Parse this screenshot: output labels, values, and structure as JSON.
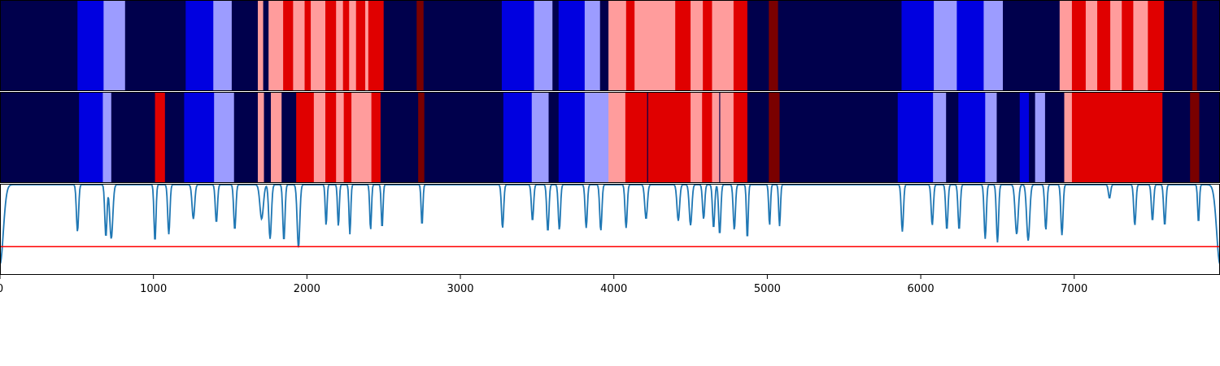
{
  "colors": {
    "c0": "#00004c",
    "c1": "#0000e0",
    "c2": "#9c9cff",
    "c3": "#ff9c9c",
    "c4": "#e00000",
    "c5": "#7a0000",
    "line": "#1f77b4",
    "threshold": "#ff0000"
  },
  "chart_data": {
    "type": "segmentation-strips-with-line",
    "x_range": [
      0,
      7950
    ],
    "x_ticks": [
      0,
      1000,
      2000,
      3000,
      4000,
      5000,
      6000,
      7000
    ],
    "x_tick_labels": [
      "0",
      "1000",
      "2000",
      "3000",
      "4000",
      "5000",
      "6000",
      "7000"
    ],
    "legend": "none",
    "grid": false,
    "strips": [
      {
        "segments": [
          [
            0,
            505,
            "c0"
          ],
          [
            505,
            675,
            "c1"
          ],
          [
            675,
            815,
            "c2"
          ],
          [
            815,
            1210,
            "c0"
          ],
          [
            1210,
            1390,
            "c1"
          ],
          [
            1390,
            1510,
            "c2"
          ],
          [
            1510,
            1680,
            "c0"
          ],
          [
            1680,
            1715,
            "c3"
          ],
          [
            1715,
            1750,
            "c0"
          ],
          [
            1750,
            1845,
            "c3"
          ],
          [
            1845,
            1910,
            "c4"
          ],
          [
            1910,
            1985,
            "c3"
          ],
          [
            1985,
            2025,
            "c4"
          ],
          [
            2025,
            2120,
            "c3"
          ],
          [
            2120,
            2190,
            "c4"
          ],
          [
            2190,
            2235,
            "c3"
          ],
          [
            2235,
            2275,
            "c4"
          ],
          [
            2275,
            2320,
            "c3"
          ],
          [
            2320,
            2380,
            "c4"
          ],
          [
            2380,
            2400,
            "c3"
          ],
          [
            2400,
            2500,
            "c4"
          ],
          [
            2500,
            2715,
            "c0"
          ],
          [
            2715,
            2760,
            "c5"
          ],
          [
            2760,
            3270,
            "c0"
          ],
          [
            3270,
            3480,
            "c1"
          ],
          [
            3480,
            3600,
            "c2"
          ],
          [
            3600,
            3640,
            "c0"
          ],
          [
            3640,
            3810,
            "c1"
          ],
          [
            3810,
            3910,
            "c2"
          ],
          [
            3910,
            3965,
            "c0"
          ],
          [
            3965,
            4080,
            "c3"
          ],
          [
            4080,
            4135,
            "c4"
          ],
          [
            4135,
            4400,
            "c3"
          ],
          [
            4400,
            4500,
            "c4"
          ],
          [
            4500,
            4580,
            "c3"
          ],
          [
            4580,
            4640,
            "c4"
          ],
          [
            4640,
            4780,
            "c3"
          ],
          [
            4780,
            4870,
            "c4"
          ],
          [
            4870,
            5010,
            "c0"
          ],
          [
            5010,
            5070,
            "c5"
          ],
          [
            5070,
            5875,
            "c0"
          ],
          [
            5875,
            6085,
            "c1"
          ],
          [
            6085,
            6235,
            "c2"
          ],
          [
            6235,
            6410,
            "c1"
          ],
          [
            6410,
            6535,
            "c2"
          ],
          [
            6535,
            6905,
            "c0"
          ],
          [
            6905,
            6985,
            "c3"
          ],
          [
            6985,
            7075,
            "c4"
          ],
          [
            7075,
            7150,
            "c3"
          ],
          [
            7150,
            7235,
            "c4"
          ],
          [
            7235,
            7310,
            "c3"
          ],
          [
            7310,
            7385,
            "c4"
          ],
          [
            7385,
            7480,
            "c3"
          ],
          [
            7480,
            7585,
            "c4"
          ],
          [
            7585,
            7770,
            "c0"
          ],
          [
            7770,
            7800,
            "c5"
          ],
          [
            7800,
            7950,
            "c0"
          ]
        ]
      },
      {
        "segments": [
          [
            0,
            515,
            "c0"
          ],
          [
            515,
            670,
            "c1"
          ],
          [
            670,
            725,
            "c2"
          ],
          [
            725,
            1010,
            "c0"
          ],
          [
            1010,
            1075,
            "c4"
          ],
          [
            1075,
            1200,
            "c0"
          ],
          [
            1200,
            1395,
            "c1"
          ],
          [
            1395,
            1525,
            "c2"
          ],
          [
            1525,
            1680,
            "c0"
          ],
          [
            1680,
            1720,
            "c3"
          ],
          [
            1720,
            1765,
            "c0"
          ],
          [
            1765,
            1835,
            "c3"
          ],
          [
            1835,
            1930,
            "c0"
          ],
          [
            1930,
            2045,
            "c4"
          ],
          [
            2045,
            2120,
            "c3"
          ],
          [
            2120,
            2190,
            "c4"
          ],
          [
            2190,
            2240,
            "c3"
          ],
          [
            2240,
            2290,
            "c4"
          ],
          [
            2290,
            2420,
            "c3"
          ],
          [
            2420,
            2480,
            "c4"
          ],
          [
            2480,
            2725,
            "c0"
          ],
          [
            2725,
            2765,
            "c5"
          ],
          [
            2765,
            3280,
            "c0"
          ],
          [
            3280,
            3465,
            "c1"
          ],
          [
            3465,
            3575,
            "c2"
          ],
          [
            3575,
            3640,
            "c0"
          ],
          [
            3640,
            3810,
            "c1"
          ],
          [
            3810,
            3965,
            "c2"
          ],
          [
            3965,
            4075,
            "c3"
          ],
          [
            4075,
            4500,
            "c4"
          ],
          [
            4500,
            4575,
            "c3"
          ],
          [
            4575,
            4640,
            "c4"
          ],
          [
            4640,
            4700,
            "c3"
          ],
          [
            4700,
            4780,
            "c3"
          ],
          [
            4780,
            4870,
            "c4"
          ],
          [
            4870,
            5010,
            "c0"
          ],
          [
            5010,
            5080,
            "c5"
          ],
          [
            5080,
            5850,
            "c0"
          ],
          [
            5850,
            6080,
            "c1"
          ],
          [
            6080,
            6165,
            "c2"
          ],
          [
            6165,
            6245,
            "c0"
          ],
          [
            6245,
            6420,
            "c1"
          ],
          [
            6420,
            6495,
            "c2"
          ],
          [
            6495,
            6645,
            "c0"
          ],
          [
            6645,
            6705,
            "c1"
          ],
          [
            6705,
            6745,
            "c0"
          ],
          [
            6745,
            6810,
            "c2"
          ],
          [
            6810,
            6935,
            "c0"
          ],
          [
            6935,
            6985,
            "c3"
          ],
          [
            6985,
            7575,
            "c4"
          ],
          [
            7575,
            7755,
            "c0"
          ],
          [
            7755,
            7815,
            "c5"
          ],
          [
            7815,
            7950,
            "c0"
          ]
        ],
        "thin_lines": [
          1875,
          4220,
          4690
        ]
      }
    ],
    "line_series": {
      "ylim": [
        0,
        1
      ],
      "baseline": 0.99,
      "threshold": 0.31,
      "dips": [
        [
          0,
          0.12,
          30
        ],
        [
          505,
          0.48,
          10
        ],
        [
          690,
          0.42,
          10
        ],
        [
          725,
          0.4,
          14
        ],
        [
          1010,
          0.37,
          9
        ],
        [
          1100,
          0.45,
          10
        ],
        [
          1260,
          0.62,
          12
        ],
        [
          1410,
          0.58,
          10
        ],
        [
          1530,
          0.5,
          10
        ],
        [
          1705,
          0.62,
          16
        ],
        [
          1760,
          0.4,
          12
        ],
        [
          1850,
          0.38,
          10
        ],
        [
          1945,
          0.3,
          12
        ],
        [
          2125,
          0.55,
          8
        ],
        [
          2205,
          0.54,
          8
        ],
        [
          2280,
          0.45,
          8
        ],
        [
          2415,
          0.5,
          8
        ],
        [
          2490,
          0.52,
          8
        ],
        [
          2750,
          0.55,
          8
        ],
        [
          3275,
          0.52,
          10
        ],
        [
          3470,
          0.6,
          10
        ],
        [
          3570,
          0.48,
          10
        ],
        [
          3645,
          0.5,
          10
        ],
        [
          3820,
          0.52,
          10
        ],
        [
          3915,
          0.49,
          10
        ],
        [
          4080,
          0.52,
          10
        ],
        [
          4210,
          0.62,
          12
        ],
        [
          4420,
          0.6,
          12
        ],
        [
          4500,
          0.55,
          12
        ],
        [
          4585,
          0.62,
          10
        ],
        [
          4650,
          0.52,
          10
        ],
        [
          4690,
          0.45,
          10
        ],
        [
          4785,
          0.5,
          10
        ],
        [
          4870,
          0.4,
          8
        ],
        [
          5015,
          0.55,
          8
        ],
        [
          5080,
          0.54,
          8
        ],
        [
          5880,
          0.48,
          10
        ],
        [
          6075,
          0.55,
          10
        ],
        [
          6170,
          0.5,
          10
        ],
        [
          6250,
          0.5,
          10
        ],
        [
          6420,
          0.4,
          10
        ],
        [
          6500,
          0.36,
          10
        ],
        [
          6625,
          0.45,
          14
        ],
        [
          6700,
          0.38,
          14
        ],
        [
          6815,
          0.5,
          10
        ],
        [
          6920,
          0.44,
          10
        ],
        [
          7230,
          0.85,
          10
        ],
        [
          7395,
          0.55,
          10
        ],
        [
          7510,
          0.6,
          10
        ],
        [
          7590,
          0.55,
          10
        ],
        [
          7810,
          0.58,
          8
        ],
        [
          7950,
          0.12,
          30
        ]
      ]
    }
  }
}
